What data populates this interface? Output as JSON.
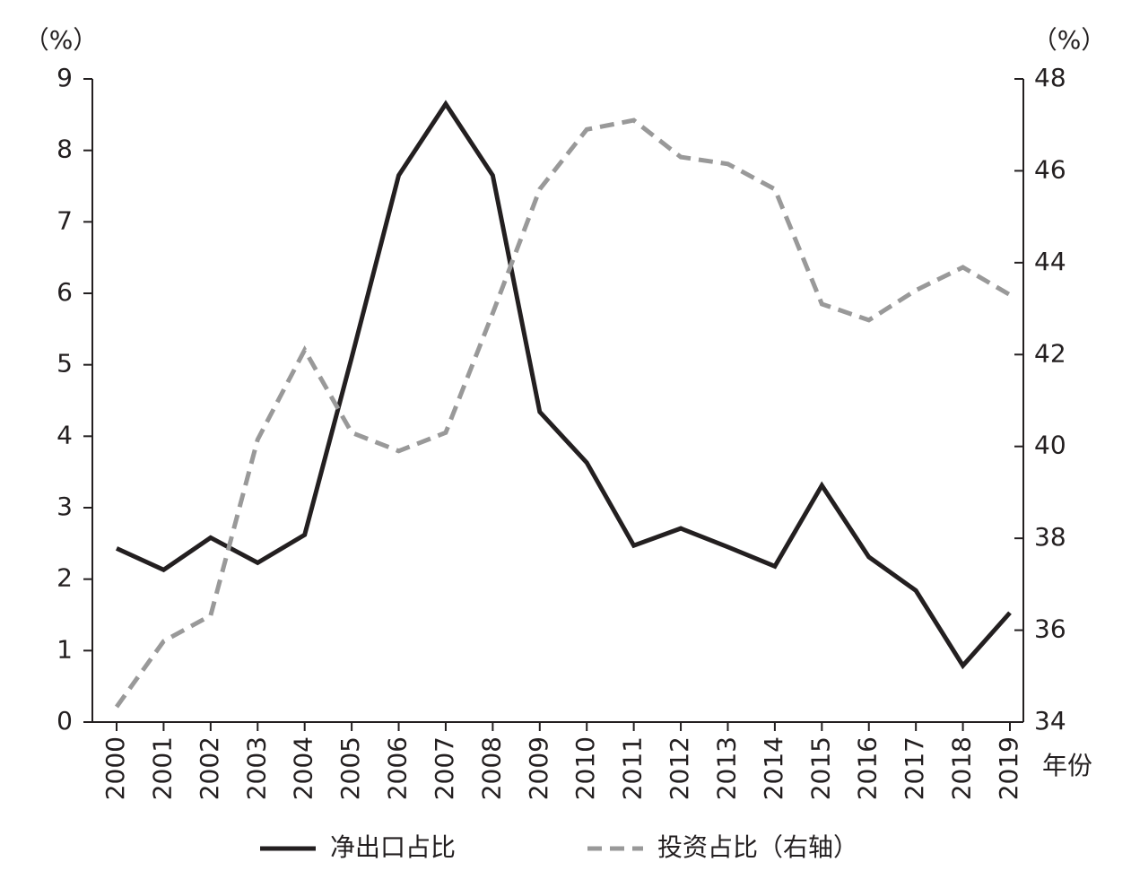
{
  "chart_data": {
    "type": "line",
    "y_unit": "（%）",
    "y2_unit": "（%）",
    "x_label": "年份",
    "categories": [
      "2000",
      "2001",
      "2002",
      "2003",
      "2004",
      "2005",
      "2006",
      "2007",
      "2008",
      "2009",
      "2010",
      "2011",
      "2012",
      "2013",
      "2014",
      "2015",
      "2016",
      "2017",
      "2018",
      "2019"
    ],
    "series": [
      {
        "name": "净出口占比",
        "color": "#231f20",
        "dash": false,
        "axis": "y",
        "values": [
          2.43,
          2.13,
          2.58,
          2.23,
          2.62,
          5.1,
          7.65,
          8.65,
          7.65,
          4.34,
          3.63,
          2.47,
          2.71,
          2.45,
          2.18,
          3.31,
          2.31,
          1.84,
          0.79,
          1.53
        ]
      },
      {
        "name": "投资占比（右轴）",
        "color": "#999999",
        "dash": true,
        "axis": "y2",
        "values": [
          34.33,
          35.76,
          36.32,
          40.15,
          42.1,
          40.3,
          39.9,
          40.3,
          42.9,
          45.6,
          46.9,
          47.1,
          46.3,
          46.15,
          45.6,
          43.1,
          42.75,
          43.4,
          43.9,
          43.3
        ]
      }
    ],
    "ylim": [
      0,
      9
    ],
    "yticks": [
      0,
      1,
      2,
      3,
      4,
      5,
      6,
      7,
      8,
      9
    ],
    "y2lim": [
      34,
      48
    ],
    "y2ticks": [
      34,
      36,
      38,
      40,
      42,
      44,
      46,
      48
    ]
  }
}
